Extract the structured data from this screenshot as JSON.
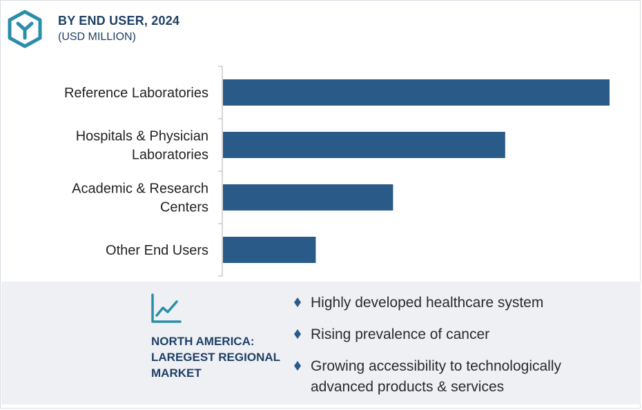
{
  "header": {
    "title": "BY END USER, 2024",
    "subtitle": "(USD MILLION)"
  },
  "colors": {
    "bar": "#2a5b88",
    "accent": "#2a8ea8",
    "title": "#1f3f66"
  },
  "chart_data": {
    "type": "bar",
    "orientation": "horizontal",
    "title": "BY END USER, 2024",
    "subtitle": "(USD MILLION)",
    "categories": [
      [
        "Reference Laboratories"
      ],
      [
        "Hospitals & Physician",
        "Laboratories"
      ],
      [
        "Academic & Research",
        "Centers"
      ],
      [
        "Other End Users"
      ]
    ],
    "values": [
      100,
      73,
      44,
      24
    ],
    "value_scale": "relative (no axis values printed)",
    "grid": false,
    "legend": "none"
  },
  "footer": {
    "region_line1": "NORTH AMERICA:",
    "region_line2": "LAREGEST REGIONAL",
    "region_line3": "MARKET",
    "icon": "trend-chart-icon",
    "bullets": [
      [
        "Highly developed healthcare system"
      ],
      [
        "Rising prevalence of cancer"
      ],
      [
        "Growing accessibility to technologically",
        "advanced products & services"
      ]
    ]
  }
}
